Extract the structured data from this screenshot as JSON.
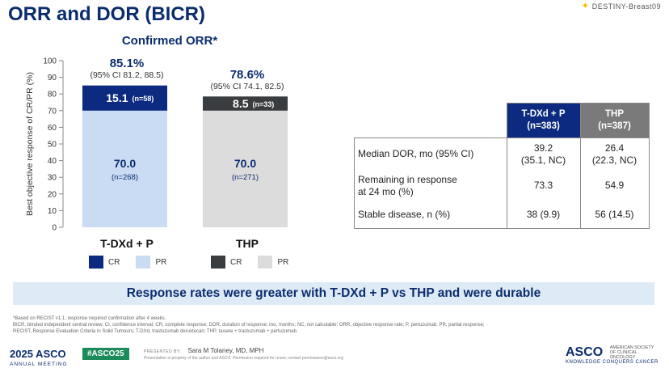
{
  "slide": {
    "title": "ORR and DOR (BICR)",
    "logo": "DESTINY-Breast09"
  },
  "chart_data": {
    "type": "bar",
    "stacked": true,
    "title": "Confirmed ORR*",
    "ylabel": "Best objective response of CR/PR (%)",
    "ylim": [
      0,
      100
    ],
    "yticks": [
      "0",
      "10",
      "20",
      "30",
      "40",
      "50",
      "60",
      "70",
      "80",
      "90",
      "100"
    ],
    "categories": [
      "T-DXd + P",
      "THP"
    ],
    "series": [
      {
        "name": "PR",
        "values": [
          70.0,
          70.0
        ],
        "labels": [
          "70.0",
          "70.0"
        ],
        "n": [
          "(n=268)",
          "(n=271)"
        ],
        "colors": [
          "#c9dcf3",
          "#dcdcdc"
        ]
      },
      {
        "name": "CR",
        "values": [
          15.1,
          8.5
        ],
        "labels": [
          "15.1",
          "8.5"
        ],
        "n": [
          "(n=58)",
          "(n=33)"
        ],
        "colors": [
          "#0b2a80",
          "#3a3d40"
        ]
      }
    ],
    "totals": [
      {
        "value": "85.1%",
        "ci": "(95% CI 81.2, 88.5)"
      },
      {
        "value": "78.6%",
        "ci": "(95% CI 74.1, 82.5)"
      }
    ],
    "legends": [
      [
        {
          "label": "CR",
          "color": "#0b2a80"
        },
        {
          "label": "PR",
          "color": "#c9dcf3"
        }
      ],
      [
        {
          "label": "CR",
          "color": "#3a3d40"
        },
        {
          "label": "PR",
          "color": "#dcdcdc"
        }
      ]
    ],
    "grid": false
  },
  "dor_table": {
    "headers": [
      {
        "line1": "T-DXd + P",
        "line2": "(n=383)"
      },
      {
        "line1": "THP",
        "line2": "(n=387)"
      }
    ],
    "rows": [
      {
        "label1": "Median DOR, mo (95% CI)",
        "label2": "",
        "v1a": "39.2",
        "v1b": "(35.1, NC)",
        "v2a": "26.4",
        "v2b": "(22.3, NC)"
      },
      {
        "label1": "Remaining in response",
        "label2": "at 24 mo (%)",
        "v1a": "73.3",
        "v1b": "",
        "v2a": "54.9",
        "v2b": ""
      },
      {
        "label1": "Stable disease, n (%)",
        "label2": "",
        "v1a": "38 (9.9)",
        "v1b": "",
        "v2a": "56 (14.5)",
        "v2b": ""
      }
    ]
  },
  "banner": "Response rates were greater with T-DXd + P vs THP and were durable",
  "footnotes": {
    "line1": "*Based on RECIST v1.1; response required confirmation after 4 weeks.",
    "line2": "BICR, blinded independent central review; CI, confidence interval; CR, complete response; DOR, duration of response; mo, months; NC, not calculable; ORR, objective response rate; P, pertuzumab; PR, partial response;",
    "line3": "RECIST, Response Evaluation Criteria in Solid Tumours; T-DXd, trastuzumab deruxtecan; THP, taxane + trastuzumab + pertuzumab."
  },
  "footer": {
    "asco_year": "2025 ASCO",
    "asco_meeting": "ANNUAL MEETING",
    "hashtag": "#ASCO25",
    "presented_by": "PRESENTED BY:",
    "presenter": "Sara M Tolaney, MD, MPH",
    "permission": "Presentation is property of the author and ASCO. Permission required for reuse; contact permissions@asco.org",
    "asco_right": "ASCO",
    "society": "AMERICAN SOCIETY OF CLINICAL ONCOLOGY",
    "tagline": "KNOWLEDGE CONQUERS CANCER"
  }
}
